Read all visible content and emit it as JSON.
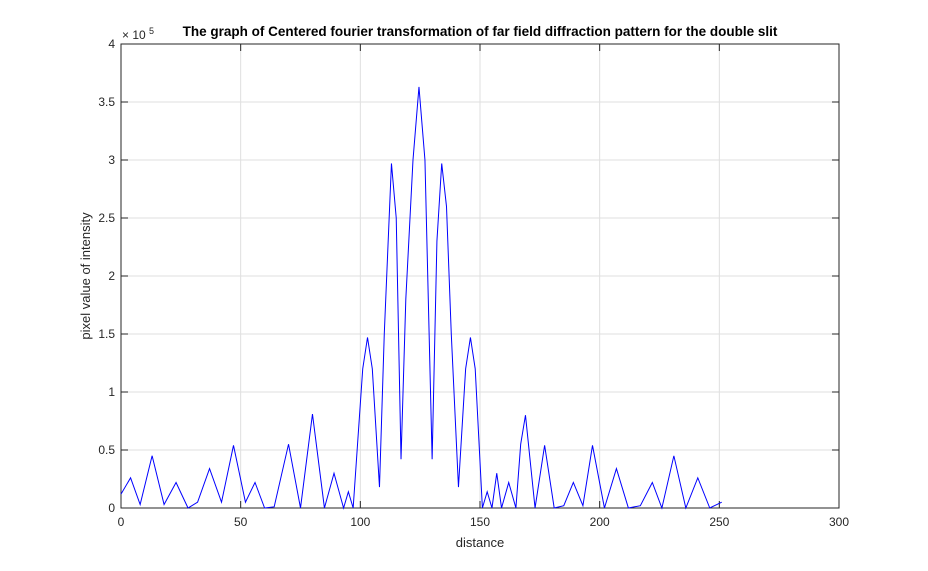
{
  "chart_data": {
    "type": "line",
    "title": "The graph of Centered fourier transformation of far field diffraction pattern for the double slit",
    "xlabel": "distance",
    "ylabel": "pixel value of intensity",
    "xlim": [
      0,
      300
    ],
    "ylim": [
      0,
      4
    ],
    "y_exponent_base": "× 10",
    "y_exponent_power": "5",
    "grid": true,
    "line_color": "#0000ff",
    "x_ticks": [
      "0",
      "50",
      "100",
      "150",
      "200",
      "250",
      "300"
    ],
    "y_ticks": [
      "0",
      "0.5",
      "1",
      "1.5",
      "2",
      "2.5",
      "3",
      "3.5",
      "4"
    ],
    "series": [
      {
        "x": [
          0,
          4,
          8,
          13,
          18,
          23,
          28,
          32,
          37,
          42,
          47,
          52,
          56,
          60,
          64,
          70,
          75,
          80,
          85,
          89,
          93,
          95,
          97,
          99,
          101,
          103,
          105,
          108,
          110,
          113,
          115,
          117,
          119,
          122,
          124.5,
          127,
          130,
          132,
          134,
          136,
          138,
          141,
          144,
          146,
          148,
          151,
          153,
          155,
          157,
          159,
          162,
          165,
          167,
          169,
          173,
          177,
          181,
          185,
          189,
          193,
          197,
          202,
          207,
          212,
          217,
          222,
          226,
          231,
          236,
          241,
          246,
          251
        ],
        "y": [
          0.12,
          0.26,
          0.03,
          0.45,
          0.03,
          0.22,
          0.0,
          0.05,
          0.34,
          0.05,
          0.54,
          0.05,
          0.22,
          0.0,
          0.01,
          0.55,
          0.0,
          0.81,
          0.0,
          0.3,
          0.0,
          0.14,
          0.0,
          0.6,
          1.2,
          1.47,
          1.2,
          0.18,
          1.5,
          2.97,
          2.5,
          0.42,
          1.8,
          3.0,
          3.63,
          3.0,
          0.42,
          2.3,
          2.97,
          2.6,
          1.5,
          0.18,
          1.2,
          1.47,
          1.2,
          0.0,
          0.14,
          0.0,
          0.3,
          0.0,
          0.22,
          0.0,
          0.55,
          0.8,
          0.0,
          0.54,
          0.0,
          0.02,
          0.22,
          0.02,
          0.54,
          0.0,
          0.34,
          0.0,
          0.02,
          0.22,
          0.0,
          0.45,
          0.0,
          0.26,
          0.0,
          0.05
        ]
      }
    ]
  }
}
